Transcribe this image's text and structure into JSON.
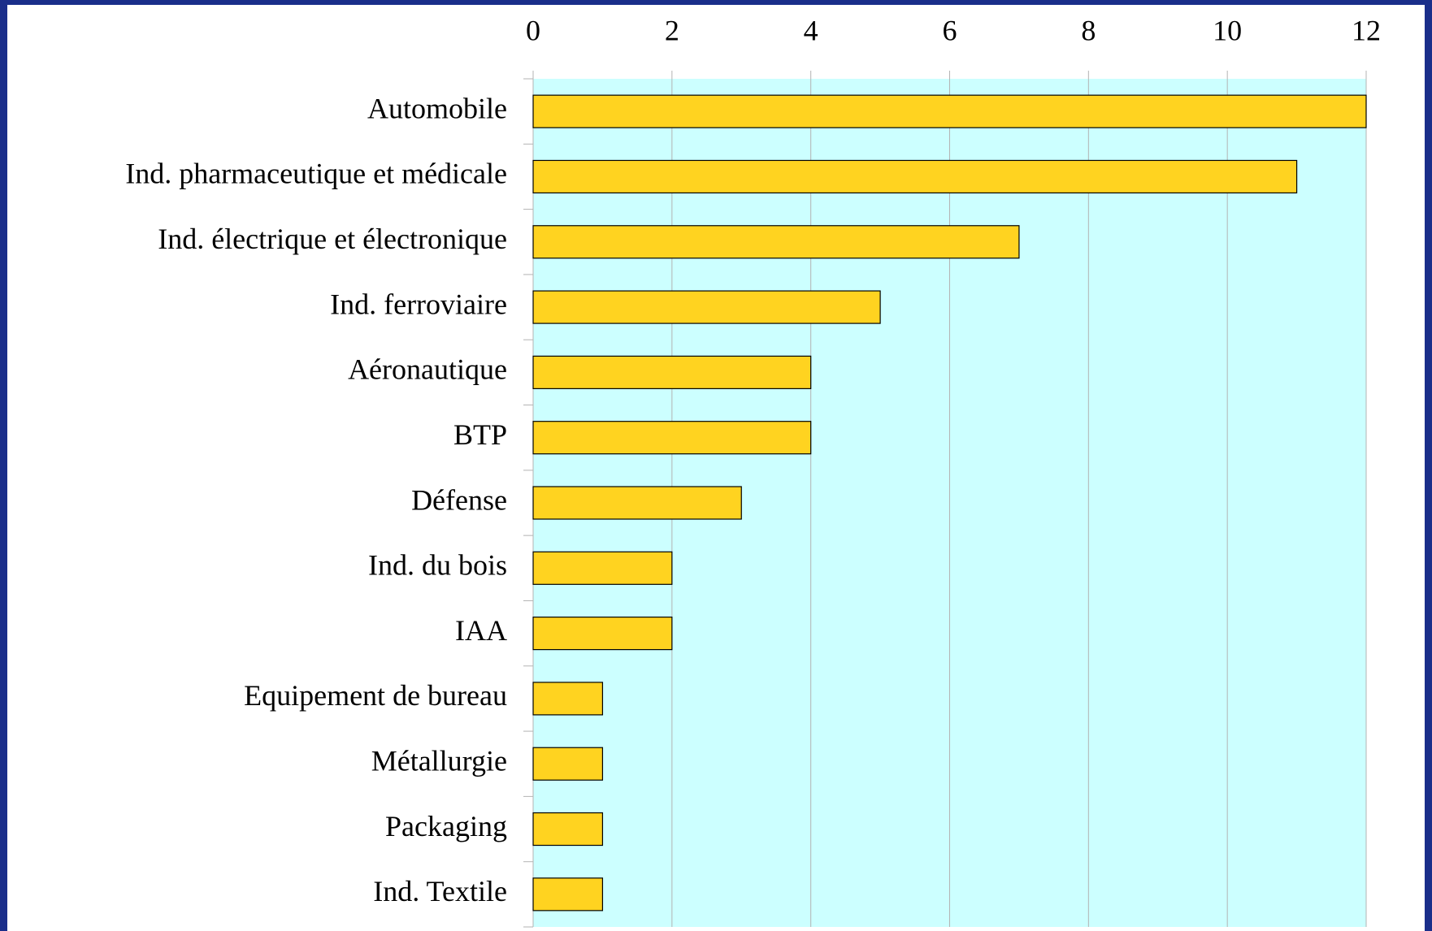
{
  "chart_data": {
    "type": "bar",
    "orientation": "horizontal",
    "categories": [
      "Automobile",
      "Ind. pharmaceutique et médicale",
      "Ind. électrique et électronique",
      "Ind. ferroviaire",
      "Aéronautique",
      "BTP",
      "Défense",
      "Ind. du bois",
      "IAA",
      "Equipement de bureau",
      "Métallurgie",
      "Packaging",
      "Ind. Textile"
    ],
    "values": [
      12,
      11,
      7,
      5,
      4,
      4,
      3,
      2,
      2,
      1,
      1,
      1,
      1
    ],
    "color": "#ffd320",
    "xlim": [
      0,
      12
    ],
    "xticks": [
      0,
      2,
      4,
      6,
      8,
      10,
      12
    ],
    "grid": true
  }
}
